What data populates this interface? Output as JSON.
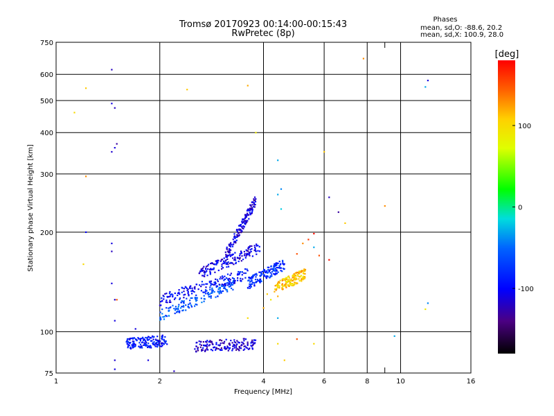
{
  "chart_data": {
    "type": "scatter",
    "title": "Tromsø 20170923 00:14:00-00:15:43",
    "subtitle": "RwPretec (8p)",
    "xlabel": "Frequency [MHz]",
    "ylabel": "Stationary phase Virtual Height [km]",
    "xscale": "log",
    "yscale": "log",
    "xlim": [
      1,
      16
    ],
    "ylim": [
      75,
      750
    ],
    "xticks": [
      1,
      2,
      4,
      6,
      8,
      10,
      16
    ],
    "xtick_labels": [
      "1",
      "2",
      "4",
      "6",
      "8",
      "10",
      "16"
    ],
    "xminor_ticks": [
      9
    ],
    "yticks": [
      75,
      100,
      200,
      300,
      400,
      500,
      600,
      750
    ],
    "ytick_labels": [
      "75",
      "100",
      "200",
      "300",
      "400",
      "500",
      "600",
      "750"
    ],
    "grid": true,
    "stats": {
      "heading": "Phases",
      "line_o": "mean, sd,O: -88.6, 20.2",
      "line_x": "mean, sd,X: 100.9, 28.0"
    },
    "colorbar": {
      "label": "[deg]",
      "range": [
        -180,
        180
      ],
      "ticks": [
        100,
        0,
        -100
      ],
      "tick_labels": [
        "100",
        "0",
        "-100"
      ]
    },
    "trace_regions": [
      {
        "name": "",
        "f_start": 2.0,
        "f_end": 3.3,
        "h_start": 112,
        "h_end": 140,
        "phase": -60
      },
      {
        "name": "",
        "f_start": 2.0,
        "f_end": 3.6,
        "h_start": 125,
        "h_end": 150,
        "phase": -95
      },
      {
        "name": "",
        "f_start": 2.6,
        "f_end": 3.9,
        "h_start": 150,
        "h_end": 180,
        "phase": -105
      },
      {
        "name": "",
        "f_start": 3.1,
        "f_end": 3.8,
        "h_start": 170,
        "h_end": 250,
        "phase": -110
      },
      {
        "name": "",
        "f_start": 3.6,
        "f_end": 4.6,
        "h_start": 140,
        "h_end": 160,
        "phase": -80
      },
      {
        "name": "",
        "f_start": 4.3,
        "f_end": 5.3,
        "h_start": 135,
        "h_end": 150,
        "phase": 110
      },
      {
        "name": "",
        "f_start": 1.6,
        "f_end": 2.1,
        "h_start": 92,
        "h_end": 94,
        "phase": -90
      },
      {
        "name": "",
        "f_start": 2.5,
        "f_end": 3.8,
        "h_start": 90,
        "h_end": 92,
        "phase": -115
      }
    ],
    "scatter_points": [
      {
        "f": 1.45,
        "h": 620,
        "p": -120
      },
      {
        "f": 1.45,
        "h": 490,
        "p": -110
      },
      {
        "f": 1.48,
        "h": 475,
        "p": -120
      },
      {
        "f": 1.5,
        "h": 370,
        "p": -130
      },
      {
        "f": 1.48,
        "h": 360,
        "p": -110
      },
      {
        "f": 1.45,
        "h": 350,
        "p": -115
      },
      {
        "f": 1.45,
        "h": 185,
        "p": -110
      },
      {
        "f": 1.45,
        "h": 175,
        "p": -120
      },
      {
        "f": 1.45,
        "h": 140,
        "p": -110
      },
      {
        "f": 1.48,
        "h": 125,
        "p": -115
      },
      {
        "f": 1.48,
        "h": 108,
        "p": -110
      },
      {
        "f": 1.48,
        "h": 82,
        "p": -115
      },
      {
        "f": 1.48,
        "h": 77,
        "p": -110
      },
      {
        "f": 1.22,
        "h": 545,
        "p": 110
      },
      {
        "f": 1.13,
        "h": 460,
        "p": 100
      },
      {
        "f": 1.22,
        "h": 295,
        "p": 130
      },
      {
        "f": 1.2,
        "h": 160,
        "p": 100
      },
      {
        "f": 1.5,
        "h": 125,
        "p": 150
      },
      {
        "f": 1.22,
        "h": 200,
        "p": -100
      },
      {
        "f": 2.4,
        "h": 540,
        "p": 110
      },
      {
        "f": 3.6,
        "h": 555,
        "p": 120
      },
      {
        "f": 3.8,
        "h": 400,
        "p": 90
      },
      {
        "f": 4.4,
        "h": 330,
        "p": -30
      },
      {
        "f": 4.5,
        "h": 270,
        "p": -40
      },
      {
        "f": 4.4,
        "h": 260,
        "p": -30
      },
      {
        "f": 4.5,
        "h": 235,
        "p": -20
      },
      {
        "f": 6.0,
        "h": 350,
        "p": 110
      },
      {
        "f": 6.2,
        "h": 255,
        "p": -120
      },
      {
        "f": 6.6,
        "h": 230,
        "p": -130
      },
      {
        "f": 6.9,
        "h": 213,
        "p": 110
      },
      {
        "f": 7.8,
        "h": 670,
        "p": 130
      },
      {
        "f": 9.0,
        "h": 240,
        "p": 130
      },
      {
        "f": 12.0,
        "h": 575,
        "p": -110
      },
      {
        "f": 11.8,
        "h": 550,
        "p": -30
      },
      {
        "f": 12.0,
        "h": 122,
        "p": -40
      },
      {
        "f": 11.8,
        "h": 117,
        "p": 90
      },
      {
        "f": 9.6,
        "h": 97,
        "p": -30
      },
      {
        "f": 6.2,
        "h": 165,
        "p": 175
      },
      {
        "f": 5.6,
        "h": 198,
        "p": 175
      },
      {
        "f": 5.4,
        "h": 190,
        "p": 160
      },
      {
        "f": 5.6,
        "h": 180,
        "p": -30
      },
      {
        "f": 5.2,
        "h": 185,
        "p": 130
      },
      {
        "f": 5.0,
        "h": 172,
        "p": 150
      },
      {
        "f": 5.8,
        "h": 170,
        "p": 150
      },
      {
        "f": 4.4,
        "h": 92,
        "p": 100
      },
      {
        "f": 4.6,
        "h": 82,
        "p": 110
      },
      {
        "f": 5.0,
        "h": 95,
        "p": 150
      },
      {
        "f": 5.6,
        "h": 92,
        "p": 100
      },
      {
        "f": 3.6,
        "h": 110,
        "p": 100
      },
      {
        "f": 4.0,
        "h": 118,
        "p": 120
      },
      {
        "f": 4.2,
        "h": 125,
        "p": 90
      },
      {
        "f": 4.1,
        "h": 130,
        "p": 110
      },
      {
        "f": 4.4,
        "h": 110,
        "p": -30
      },
      {
        "f": 1.7,
        "h": 102,
        "p": -110
      },
      {
        "f": 1.85,
        "h": 82,
        "p": -110
      },
      {
        "f": 2.2,
        "h": 76,
        "p": -120
      },
      {
        "f": 3.0,
        "h": 88,
        "p": -100
      },
      {
        "f": 4.4,
        "h": 128,
        "p": 120
      }
    ]
  }
}
